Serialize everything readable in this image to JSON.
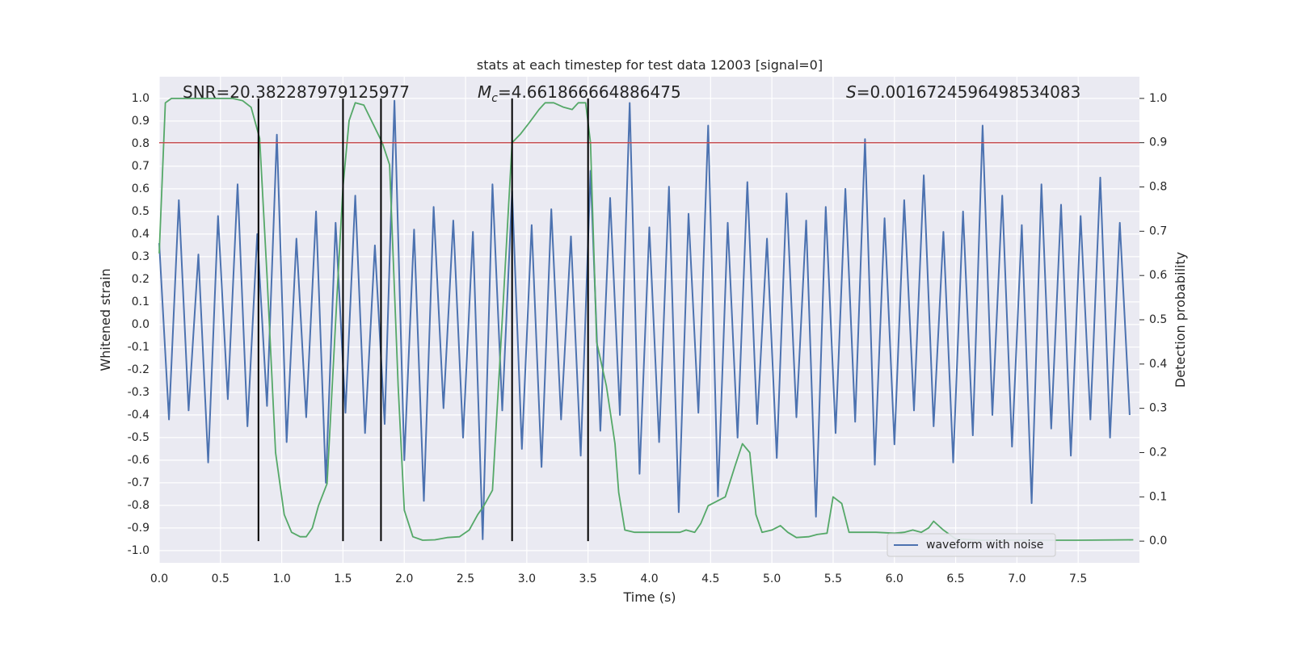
{
  "chart_data": {
    "type": "line",
    "title": "stats at each timestep for test data 12003 [signal=0]",
    "xlabel": "Time (s)",
    "ylabel": "Whitened strain",
    "y2label": "Detection probability",
    "xlim": [
      0,
      8
    ],
    "ylim": [
      -1.054,
      1.096
    ],
    "y2lim": [
      -0.049,
      1.049
    ],
    "xticks": [
      {
        "value": 0,
        "label": "0.0"
      },
      0.5,
      {
        "value": 1,
        "label": "1.0"
      },
      1.5,
      {
        "value": 2,
        "label": "2.0"
      },
      2.5,
      {
        "value": 3,
        "label": "3.0"
      },
      3.5,
      {
        "value": 4,
        "label": "4.0"
      },
      4.5,
      {
        "value": 5,
        "label": "5.0"
      },
      5.5,
      {
        "value": 6,
        "label": "6.0"
      },
      6.5,
      {
        "value": 7,
        "label": "7.0"
      },
      7.5
    ],
    "yticks": [
      {
        "value": -1,
        "label": "-1.0"
      },
      -0.9,
      -0.8,
      -0.7,
      -0.6,
      -0.5,
      -0.4,
      -0.3,
      -0.2,
      -0.1,
      {
        "value": 0,
        "label": "0.0"
      },
      0.1,
      0.2,
      0.3,
      0.4,
      0.5,
      0.6,
      0.7,
      0.8,
      0.9,
      {
        "value": 1,
        "label": "1.0"
      }
    ],
    "y2ticks": [
      {
        "value": 0,
        "label": "0.0"
      },
      0.1,
      0.2,
      0.3,
      0.4,
      0.5,
      0.6,
      0.7,
      0.8,
      0.9,
      {
        "value": 1,
        "label": "1.0"
      }
    ],
    "grid": true,
    "legend": "lower right",
    "annotations": [
      {
        "text": "SNR=20.382287979125977"
      },
      {
        "symbol": "M",
        "subscript": "c",
        "text": "=4.661866664886475"
      },
      {
        "symbol": "S",
        "text": "=0.0016724596498534083"
      }
    ],
    "hline": {
      "value": 0.9,
      "axis": "y2",
      "color": "#c44e52"
    },
    "vlines": {
      "x": [
        0.81,
        1.5,
        1.81,
        2.88,
        3.5
      ],
      "ymin": 0,
      "ymax": 1,
      "axis": "y2",
      "color": "#000000"
    },
    "series": [
      {
        "name": "waveform with noise",
        "color": "#4c72b0",
        "x": [
          0,
          0.08,
          0.16,
          0.24,
          0.32,
          0.4,
          0.48,
          0.56,
          0.64,
          0.72,
          0.8,
          0.88,
          0.96,
          1.04,
          1.12,
          1.2,
          1.28,
          1.36,
          1.44,
          1.52,
          1.6,
          1.68,
          1.76,
          1.84,
          1.92,
          2,
          2.08,
          2.16,
          2.24,
          2.32,
          2.4,
          2.48,
          2.56,
          2.64,
          2.72,
          2.8,
          2.88,
          2.96,
          3.04,
          3.12,
          3.2,
          3.28,
          3.36,
          3.44,
          3.52,
          3.6,
          3.68,
          3.76,
          3.84,
          3.92,
          4,
          4.08,
          4.16,
          4.24,
          4.32,
          4.4,
          4.48,
          4.56,
          4.64,
          4.72,
          4.8,
          4.88,
          4.96,
          5.04,
          5.12,
          5.2,
          5.28,
          5.36,
          5.44,
          5.52,
          5.6,
          5.68,
          5.76,
          5.84,
          5.92,
          6,
          6.08,
          6.16,
          6.24,
          6.32,
          6.4,
          6.48,
          6.56,
          6.64,
          6.72,
          6.8,
          6.88,
          6.96,
          7.04,
          7.12,
          7.2,
          7.28,
          7.36,
          7.44,
          7.52,
          7.6,
          7.68,
          7.76,
          7.84,
          7.92
        ],
        "values": [
          0.36,
          -0.42,
          0.55,
          -0.38,
          0.31,
          -0.61,
          0.48,
          -0.33,
          0.62,
          -0.45,
          0.4,
          -0.36,
          0.84,
          -0.52,
          0.38,
          -0.41,
          0.5,
          -0.7,
          0.45,
          -0.39,
          0.57,
          -0.48,
          0.35,
          -0.44,
          0.99,
          -0.6,
          0.42,
          -0.78,
          0.52,
          -0.37,
          0.46,
          -0.5,
          0.41,
          -0.95,
          0.62,
          -0.38,
          0.59,
          -0.55,
          0.44,
          -0.63,
          0.51,
          -0.42,
          0.39,
          -0.58,
          0.68,
          -0.47,
          0.56,
          -0.4,
          0.98,
          -0.66,
          0.43,
          -0.52,
          0.61,
          -0.83,
          0.49,
          -0.39,
          0.88,
          -0.76,
          0.45,
          -0.5,
          0.63,
          -0.44,
          0.38,
          -0.59,
          0.58,
          -0.41,
          0.46,
          -0.85,
          0.52,
          -0.48,
          0.6,
          -0.43,
          0.82,
          -0.62,
          0.47,
          -0.53,
          0.55,
          -0.38,
          0.66,
          -0.45,
          0.41,
          -0.61,
          0.5,
          -0.49,
          0.88,
          -0.4,
          0.57,
          -0.54,
          0.44,
          -0.79,
          0.62,
          -0.46,
          0.53,
          -0.58,
          0.48,
          -0.42,
          0.65,
          -0.5,
          0.45,
          -0.4
        ]
      },
      {
        "color": "#55a868",
        "axis": "y2",
        "x": [
          0,
          0.05,
          0.1,
          0.2,
          0.4,
          0.6,
          0.68,
          0.75,
          0.82,
          0.88,
          0.95,
          1.02,
          1.08,
          1.15,
          1.2,
          1.25,
          1.3,
          1.37,
          1.45,
          1.5,
          1.55,
          1.6,
          1.67,
          1.75,
          1.82,
          1.88,
          1.95,
          2,
          2.07,
          2.15,
          2.25,
          2.35,
          2.45,
          2.53,
          2.6,
          2.65,
          2.72,
          2.8,
          2.88,
          2.95,
          3.02,
          3.1,
          3.15,
          3.22,
          3.3,
          3.37,
          3.42,
          3.48,
          3.52,
          3.57,
          3.65,
          3.72,
          3.75,
          3.8,
          3.88,
          4,
          4.15,
          4.25,
          4.3,
          4.37,
          4.42,
          4.48,
          4.55,
          4.62,
          4.7,
          4.76,
          4.82,
          4.87,
          4.92,
          5,
          5.07,
          5.13,
          5.2,
          5.3,
          5.37,
          5.45,
          5.5,
          5.57,
          5.63,
          5.7,
          5.85,
          6,
          6.08,
          6.15,
          6.22,
          6.28,
          6.32,
          6.4,
          6.5,
          6.7,
          7,
          7.5,
          7.95
        ],
        "values": [
          0.65,
          0.99,
          1,
          1,
          1,
          1,
          0.995,
          0.98,
          0.91,
          0.6,
          0.2,
          0.06,
          0.02,
          0.01,
          0.01,
          0.03,
          0.08,
          0.13,
          0.55,
          0.8,
          0.95,
          0.99,
          0.985,
          0.94,
          0.9,
          0.85,
          0.35,
          0.07,
          0.01,
          0.002,
          0.003,
          0.008,
          0.01,
          0.025,
          0.06,
          0.08,
          0.115,
          0.5,
          0.9,
          0.92,
          0.945,
          0.975,
          0.99,
          0.99,
          0.98,
          0.975,
          0.99,
          0.99,
          0.9,
          0.45,
          0.35,
          0.22,
          0.11,
          0.025,
          0.02,
          0.02,
          0.02,
          0.02,
          0.025,
          0.02,
          0.04,
          0.08,
          0.09,
          0.1,
          0.17,
          0.22,
          0.2,
          0.06,
          0.02,
          0.025,
          0.035,
          0.02,
          0.008,
          0.01,
          0.015,
          0.018,
          0.1,
          0.085,
          0.02,
          0.02,
          0.02,
          0.018,
          0.02,
          0.025,
          0.02,
          0.03,
          0.045,
          0.025,
          0.005,
          0.002,
          0.002,
          0.002,
          0.003
        ]
      }
    ]
  }
}
